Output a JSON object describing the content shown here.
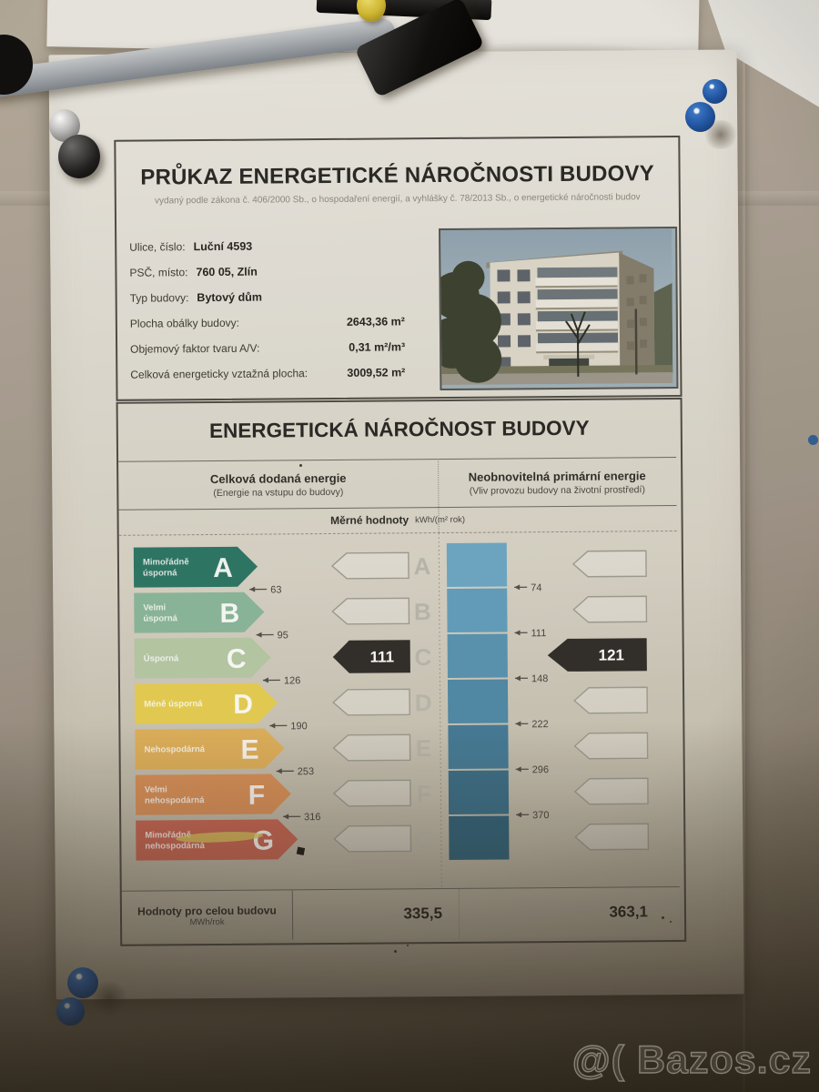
{
  "watermark": "@( Bazos.cz",
  "certificate": {
    "title": "PRŮKAZ ENERGETICKÉ NÁROČNOSTI BUDOVY",
    "subtitle": "vydaný podle zákona č. 406/2000 Sb., o hospodaření energií, a vyhlášky č. 78/2013 Sb., o energetické náročnosti budov",
    "fields": [
      {
        "label": "Ulice, číslo:",
        "value": "Luční 4593"
      },
      {
        "label": "PSČ, místo:",
        "value": "760 05, Zlín"
      },
      {
        "label": "Typ budovy:",
        "value": "Bytový dům"
      },
      {
        "label": "Plocha obálky budovy:",
        "value": "2643,36 m²"
      },
      {
        "label": "Objemový faktor tvaru A/V:",
        "value": "0,31 m²/m³"
      },
      {
        "label": "Celková energeticky vztažná plocha:",
        "value": "3009,52 m²"
      }
    ],
    "section2_title": "ENERGETICKÁ NÁROČNOST BUDOVY"
  },
  "chart_data": {
    "type": "energy-rating-label",
    "specific_header": {
      "label": "Měrné hodnoty",
      "unit": "kWh/(m² rok)"
    },
    "totals_header": {
      "label": "Hodnoty pro celou budovu",
      "unit": "MWh/rok"
    },
    "columns": [
      {
        "title": "Celková dodaná energie",
        "subtitle": "(Energie na vstupu do budovy)",
        "rating": "C",
        "rating_index": 2,
        "specific_value": 111,
        "total_value": "335,5",
        "thresholds": [
          63,
          95,
          126,
          190,
          253,
          316
        ]
      },
      {
        "title": "Neobnovitelná primární energie",
        "subtitle": "(Vliv provozu budovy na životní prostředí)",
        "rating": "C",
        "rating_index": 2,
        "specific_value": 121,
        "total_value": "363,1",
        "thresholds": [
          74,
          111,
          148,
          222,
          296,
          370
        ]
      }
    ],
    "classes": [
      {
        "letter": "A",
        "label_lines": [
          "Mimořádně",
          "úsporná"
        ],
        "color": "#2a7465"
      },
      {
        "letter": "B",
        "label_lines": [
          "Velmi",
          "úsporná"
        ],
        "color": "#89b79a"
      },
      {
        "letter": "C",
        "label_lines": [
          "Úsporná"
        ],
        "color": "#b5c9a5"
      },
      {
        "letter": "D",
        "label_lines": [
          "Méně úsporná"
        ],
        "color": "#e6ce52"
      },
      {
        "letter": "E",
        "label_lines": [
          "Nehospodárná"
        ],
        "color": "#e2b25b"
      },
      {
        "letter": "F",
        "label_lines": [
          "Velmi",
          "nehospodárná"
        ],
        "color": "#dc9159"
      },
      {
        "letter": "G",
        "label_lines": [
          "Mimořádně",
          "nehospodárná"
        ],
        "color": "#c96553"
      }
    ],
    "blue_bar_colors": [
      "#6ba7c6",
      "#609dbd",
      "#5793b2",
      "#4d88a7",
      "#437b99",
      "#396f8b",
      "#30637d"
    ],
    "value_arrow_color": "#2e2c29"
  }
}
